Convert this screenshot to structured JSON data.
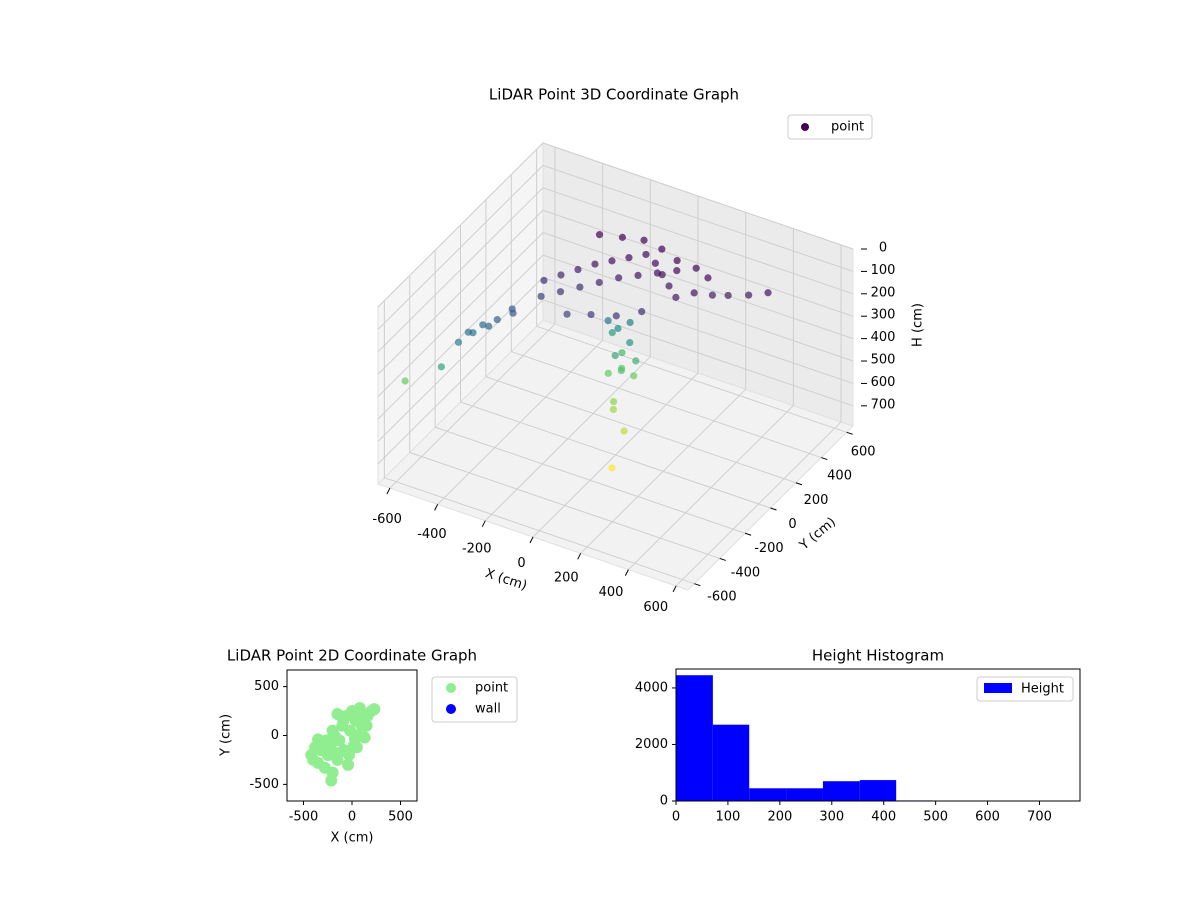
{
  "chart_data": [
    {
      "type": "scatter3d",
      "title": "LiDAR Point 3D Coordinate Graph",
      "x_label": "X (cm)",
      "y_label": "Y (cm)",
      "z_label": "H (cm)",
      "xlim": [
        -650,
        650
      ],
      "ylim": [
        -650,
        650
      ],
      "zlim": [
        790,
        0
      ],
      "xticks": [
        -600,
        -400,
        -200,
        0,
        200,
        400,
        600
      ],
      "yticks": [
        -600,
        -400,
        -200,
        0,
        200,
        400,
        600
      ],
      "zticks": [
        0,
        100,
        200,
        300,
        400,
        500,
        600,
        700
      ],
      "grid": true,
      "legend": "upper right",
      "series": [
        {
          "name": "point",
          "color": "#440154",
          "colormap": "viridis",
          "x": [
            -300,
            -250,
            -200,
            -150,
            -100,
            -50,
            0,
            50,
            100,
            150,
            200,
            250,
            300,
            -280,
            -220,
            -160,
            -100,
            -40,
            20,
            80,
            140,
            200,
            260,
            -200,
            -120,
            -40,
            40,
            120,
            -150,
            -60,
            30,
            110,
            350,
            420,
            480,
            -350,
            -400,
            -450,
            -500,
            -520,
            -470,
            -420,
            -380,
            -560,
            -100,
            -40,
            -80,
            -20,
            -120,
            -60,
            0,
            -90,
            -50,
            -70,
            -110,
            -30,
            -40,
            -30,
            -720,
            50,
            79
          ],
          "y": [
            0,
            40,
            80,
            120,
            160,
            200,
            240,
            220,
            180,
            140,
            100,
            150,
            200,
            -60,
            -20,
            20,
            60,
            100,
            140,
            180,
            220,
            260,
            240,
            250,
            280,
            300,
            290,
            260,
            -100,
            -80,
            -50,
            0,
            230,
            260,
            300,
            -150,
            -180,
            -200,
            -220,
            -260,
            -240,
            -210,
            -100,
            -320,
            130,
            190,
            170,
            150,
            200,
            110,
            160,
            220,
            140,
            180,
            150,
            200,
            60,
            40,
            -305,
            -26,
            -176
          ],
          "h": [
            120,
            100,
            80,
            60,
            50,
            40,
            30,
            40,
            50,
            60,
            70,
            60,
            80,
            150,
            130,
            110,
            90,
            70,
            60,
            50,
            40,
            30,
            40,
            20,
            20,
            15,
            20,
            25,
            160,
            140,
            130,
            110,
            80,
            70,
            60,
            200,
            230,
            260,
            300,
            330,
            280,
            250,
            220,
            420,
            300,
            320,
            350,
            380,
            400,
            430,
            460,
            490,
            510,
            530,
            550,
            560,
            600,
            620,
            550,
            650,
            720
          ]
        }
      ]
    },
    {
      "type": "scatter",
      "title": "LiDAR Point 2D Coordinate Graph",
      "x_label": "X (cm)",
      "y_label": "Y (cm)",
      "xlim": [
        -670,
        670
      ],
      "ylim": [
        -670,
        670
      ],
      "xticks": [
        -500,
        0,
        500
      ],
      "yticks": [
        -500,
        0,
        500
      ],
      "legend": "outside right",
      "series": [
        {
          "name": "point",
          "color": "#90ee90",
          "x": [
            -420,
            -380,
            -350,
            -300,
            -280,
            -250,
            -220,
            -200,
            -180,
            -150,
            -130,
            -100,
            -80,
            -60,
            -40,
            -20,
            0,
            20,
            40,
            60,
            80,
            100,
            130,
            160,
            200,
            230,
            -320,
            -260,
            -200,
            -140,
            -90,
            -30,
            30,
            90,
            150,
            -214,
            -350,
            -400,
            -150,
            50
          ],
          "y": [
            -200,
            -120,
            -280,
            -60,
            -330,
            -200,
            -100,
            -380,
            0,
            -250,
            -50,
            100,
            -150,
            200,
            -300,
            50,
            250,
            -100,
            150,
            0,
            280,
            100,
            -20,
            200,
            250,
            270,
            -150,
            -50,
            50,
            -180,
            150,
            -200,
            -30,
            180,
            100,
            -460,
            -40,
            -250,
            220,
            -120
          ]
        },
        {
          "name": "wall",
          "color": "#0000ff",
          "x": [],
          "y": []
        }
      ]
    },
    {
      "type": "histogram",
      "title": "Height Histogram",
      "bins": [
        0,
        71,
        141,
        212,
        283,
        354,
        424,
        495,
        566,
        637,
        707,
        778
      ],
      "values": [
        4450,
        2700,
        450,
        450,
        700,
        740,
        20,
        2,
        1,
        0,
        1
      ],
      "color": "#0000ff",
      "name": "Height",
      "legend": "upper right",
      "xlim": [
        0,
        778
      ],
      "ylim": [
        0,
        4670
      ],
      "xticks": [
        0,
        100,
        200,
        300,
        400,
        500,
        600,
        700
      ],
      "yticks": [
        0,
        2000,
        4000
      ]
    }
  ]
}
